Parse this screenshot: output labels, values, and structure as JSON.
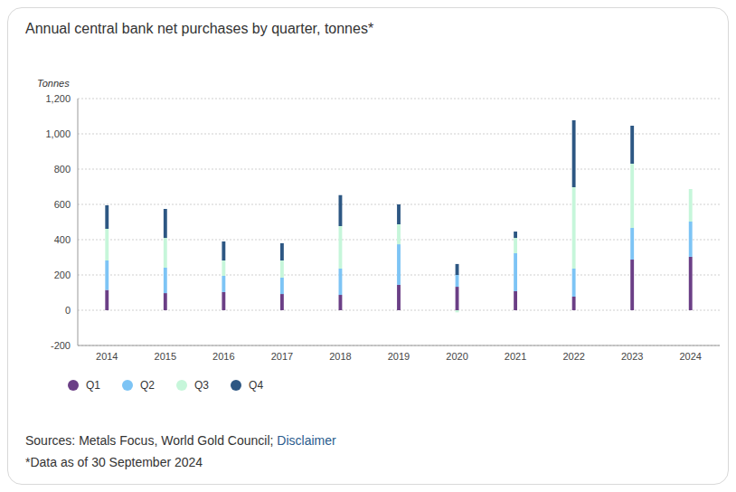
{
  "chart_data": {
    "type": "bar",
    "title": "Annual central bank net purchases by quarter, tonnes*",
    "y_label": "Tonnes",
    "source": "Sources: Metals Focus, World Gold Council;",
    "source_link": "Disclaimer",
    "footnote": "*Data as of 30 September 2024",
    "categories": [
      "2014",
      "2015",
      "2016",
      "2017",
      "2018",
      "2019",
      "2020",
      "2021",
      "2022",
      "2023",
      "2024"
    ],
    "series": [
      {
        "name": "Q1",
        "color": "#6b3f86",
        "values": [
          115,
          97,
          103,
          92,
          87,
          144,
          133,
          108,
          77,
          287,
          303
        ]
      },
      {
        "name": "Q2",
        "color": "#7dc4f5",
        "values": [
          167,
          144,
          92,
          93,
          149,
          230,
          67,
          215,
          159,
          180,
          200
        ]
      },
      {
        "name": "Q3",
        "color": "#c6f6da",
        "values": [
          180,
          169,
          87,
          97,
          241,
          113,
          -12,
          87,
          462,
          364,
          184
        ]
      },
      {
        "name": "Q4",
        "color": "#2d5783",
        "values": [
          133,
          165,
          108,
          98,
          175,
          113,
          62,
          36,
          379,
          215,
          null
        ]
      }
    ],
    "stacked": true,
    "grid": true,
    "legend": "bottom left",
    "ylim": [
      -200,
      1200
    ],
    "yticks": [
      -200,
      0,
      200,
      400,
      600,
      800,
      {
        "value": 1000,
        "label": "1,000"
      },
      {
        "value": 1200,
        "label": "1,200"
      }
    ]
  }
}
